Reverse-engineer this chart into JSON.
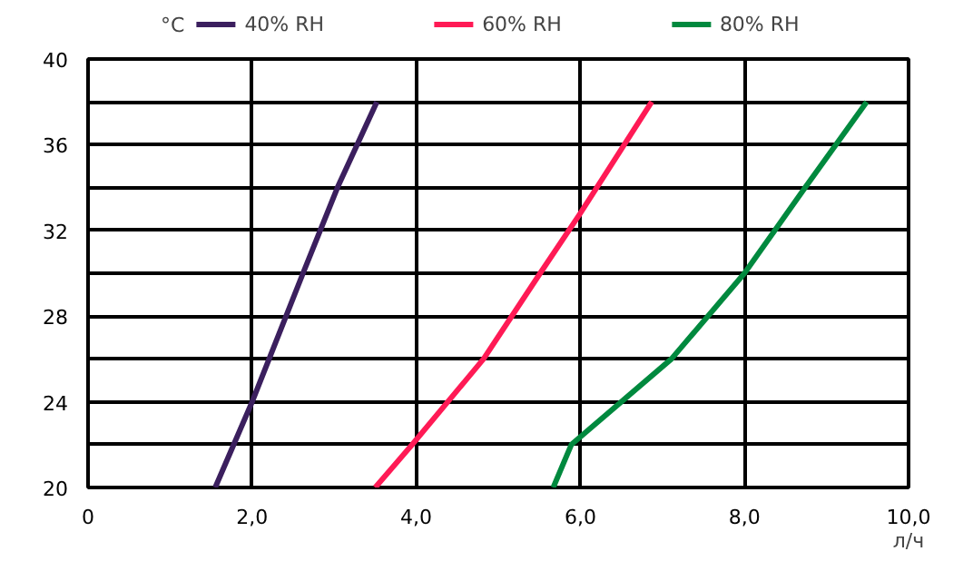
{
  "chart_data": {
    "type": "line",
    "xlabel": "л/ч",
    "ylabel": "°C",
    "xlim": [
      0,
      10
    ],
    "ylim": [
      20,
      40
    ],
    "xticks": [
      0,
      {
        "value": 2,
        "label": "2,0"
      },
      {
        "value": 4,
        "label": "4,0"
      },
      {
        "value": 6,
        "label": "6,0"
      },
      {
        "value": 8,
        "label": "8,0"
      },
      {
        "value": 10,
        "label": "10,0"
      }
    ],
    "yticks": [
      20,
      {
        "value": 22,
        "label": null
      },
      24,
      {
        "value": 26,
        "label": null
      },
      28,
      {
        "value": 30,
        "label": null
      },
      32,
      {
        "value": 34,
        "label": null
      },
      36,
      {
        "value": 38,
        "label": null
      },
      40
    ],
    "grid": true,
    "legend": "top",
    "marker": "none",
    "line_style": "solid",
    "series": [
      {
        "name": "40% RH",
        "color": "#3b1f5e",
        "x": [
          1.55,
          2.0,
          2.62,
          3.04,
          3.52
        ],
        "values": [
          20,
          24,
          30,
          34,
          38
        ]
      },
      {
        "name": "60% RH",
        "color": "#ff1a55",
        "x": [
          3.5,
          3.95,
          4.82,
          5.51,
          6.0,
          6.87
        ],
        "values": [
          20,
          22,
          26,
          30,
          32.8,
          38
        ]
      },
      {
        "name": "80% RH",
        "color": "#00893e",
        "x": [
          5.67,
          5.89,
          7.11,
          8.0,
          8.74,
          9.49
        ],
        "values": [
          20,
          22,
          26,
          30,
          34,
          38
        ]
      }
    ]
  }
}
